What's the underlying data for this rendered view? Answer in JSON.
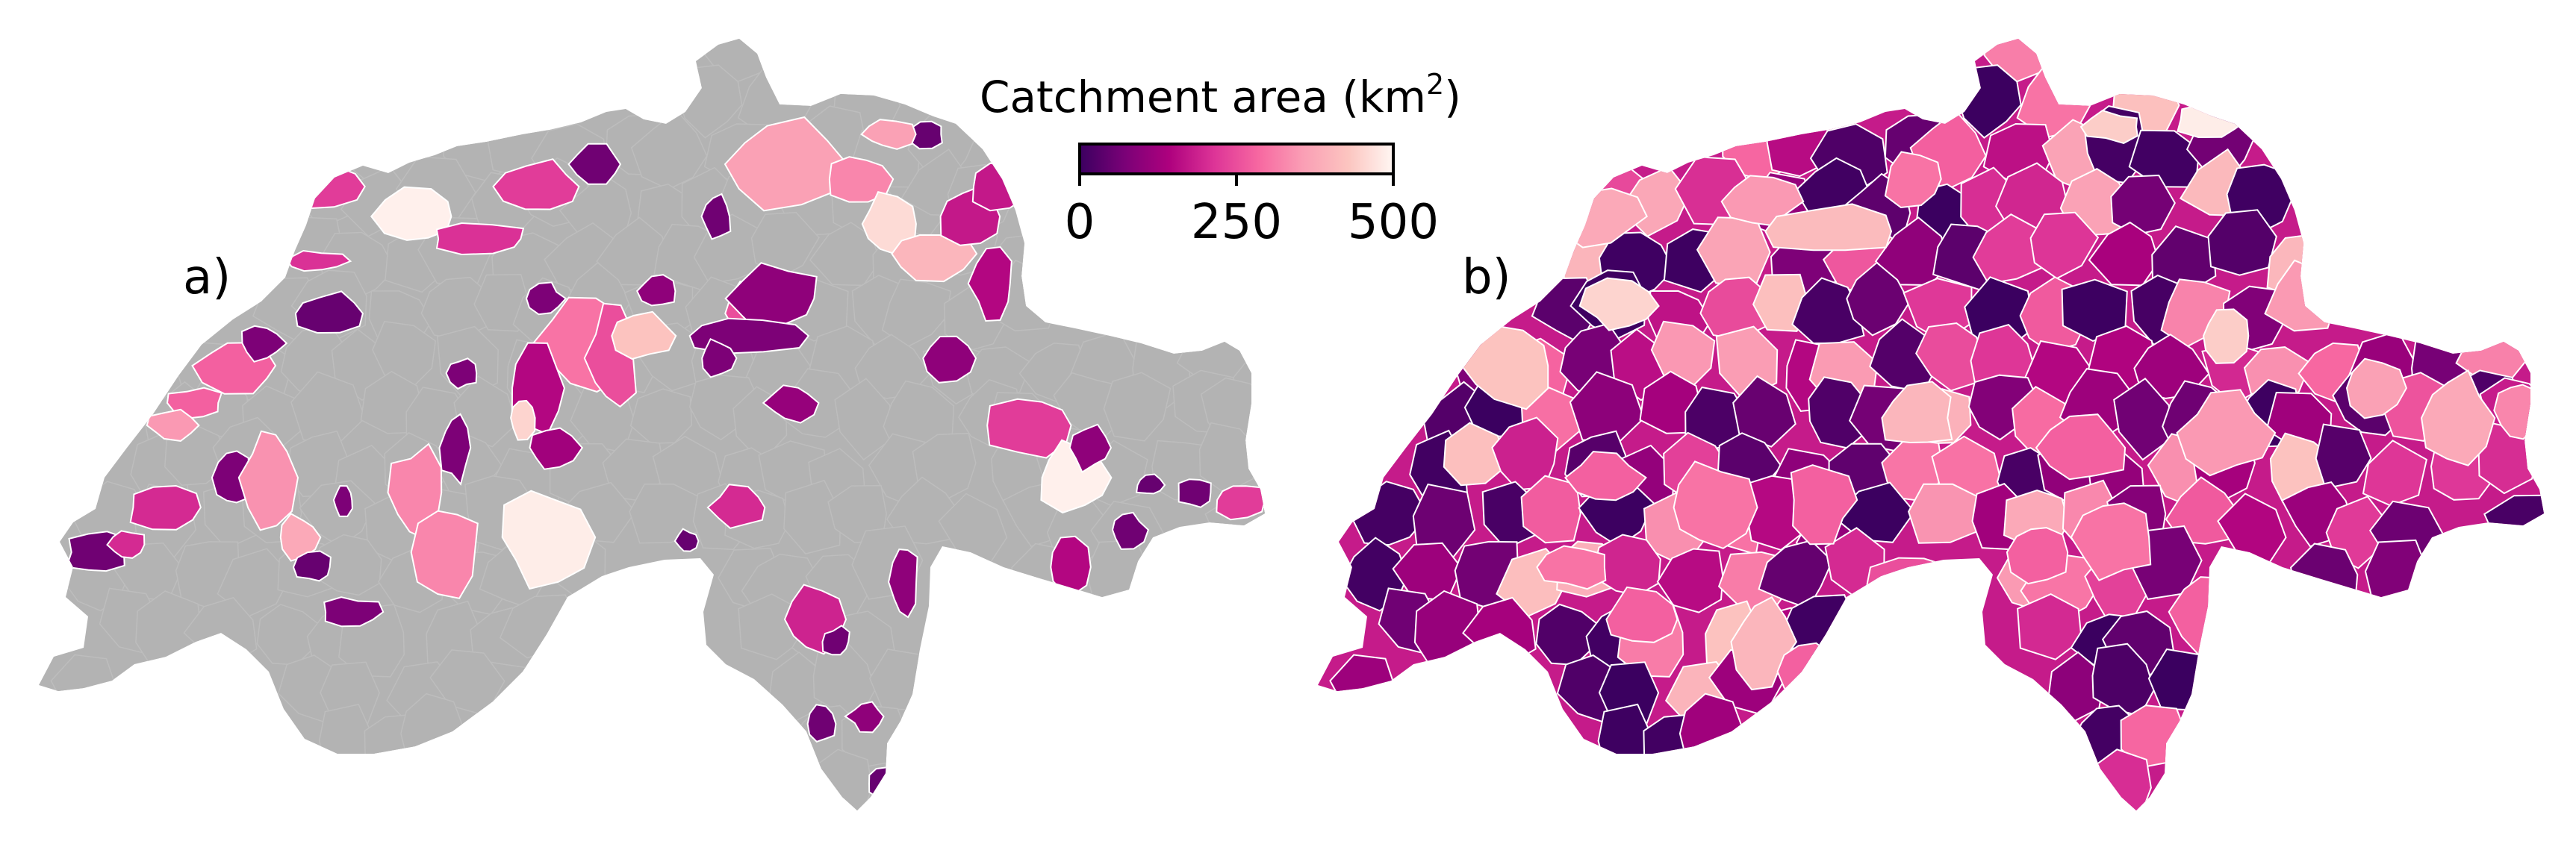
{
  "panels": [
    {
      "id": "a",
      "label": "a)",
      "mode": "selected"
    },
    {
      "id": "b",
      "label": "b)",
      "mode": "all"
    }
  ],
  "colorbar": {
    "title": "Catchment area (km",
    "title_sup": "2",
    "title_close": ")",
    "min": 0,
    "max": 500,
    "ticks": [
      {
        "value": 0,
        "label": "0"
      },
      {
        "value": 250,
        "label": "250"
      },
      {
        "value": 500,
        "label": "500"
      }
    ],
    "colormap": "RdPu_r",
    "stops": [
      "#3b0060",
      "#7a0177",
      "#ae017e",
      "#dd3497",
      "#f768a1",
      "#fa9fb5",
      "#fcc5c0",
      "#fff7f3"
    ]
  },
  "colors": {
    "background": "#b3b3b3",
    "border": "#ffffff"
  }
}
